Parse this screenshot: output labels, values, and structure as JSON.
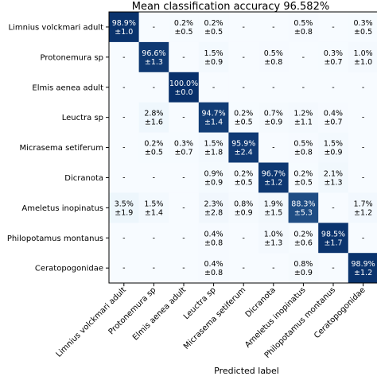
{
  "chart_data": {
    "type": "heatmap",
    "title": "Mean classification accuracy 96.582%",
    "xlabel": "Predicted label",
    "ylabel": "",
    "labels": [
      "Limnius volckmari adult",
      "Protonemura sp",
      "Elmis aenea adult",
      "Leuctra sp",
      "Micrasema setiferum",
      "Dicranota",
      "Ameletus inopinatus",
      "Philopotamus montanus",
      "Ceratopogonidae"
    ],
    "mean": [
      [
        98.9,
        null,
        0.2,
        0.2,
        null,
        null,
        0.5,
        null,
        0.3
      ],
      [
        null,
        96.6,
        null,
        1.5,
        null,
        0.5,
        null,
        0.3,
        1.0
      ],
      [
        null,
        null,
        100.0,
        null,
        null,
        null,
        null,
        null,
        null
      ],
      [
        null,
        2.8,
        null,
        94.7,
        0.2,
        0.7,
        1.2,
        0.4,
        null
      ],
      [
        null,
        0.2,
        0.3,
        1.5,
        95.9,
        null,
        0.5,
        1.5,
        null
      ],
      [
        null,
        null,
        null,
        0.9,
        0.2,
        96.7,
        0.2,
        2.1,
        null
      ],
      [
        3.5,
        1.5,
        null,
        2.3,
        0.8,
        1.9,
        88.3,
        null,
        1.7
      ],
      [
        null,
        null,
        null,
        0.4,
        null,
        1.0,
        0.2,
        98.5,
        null
      ],
      [
        null,
        null,
        null,
        0.4,
        null,
        null,
        0.8,
        null,
        98.9
      ]
    ],
    "std": [
      [
        1.0,
        null,
        0.5,
        0.5,
        null,
        null,
        0.8,
        null,
        0.5
      ],
      [
        null,
        1.3,
        null,
        0.9,
        null,
        0.8,
        null,
        0.7,
        1.0
      ],
      [
        null,
        null,
        0.0,
        null,
        null,
        null,
        null,
        null,
        null
      ],
      [
        null,
        1.6,
        null,
        1.4,
        0.5,
        0.9,
        1.1,
        0.7,
        null
      ],
      [
        null,
        0.5,
        0.7,
        1.8,
        2.4,
        null,
        0.8,
        0.9,
        null
      ],
      [
        null,
        null,
        null,
        0.9,
        0.5,
        1.2,
        0.5,
        1.3,
        null
      ],
      [
        1.9,
        1.4,
        null,
        2.8,
        0.9,
        1.5,
        5.3,
        null,
        1.2
      ],
      [
        null,
        null,
        null,
        0.8,
        null,
        1.3,
        0.6,
        1.7,
        null
      ],
      [
        null,
        null,
        null,
        0.8,
        null,
        null,
        0.9,
        null,
        1.2
      ]
    ],
    "empty_label": "-",
    "pm_symbol": "±",
    "percent_symbol": "%",
    "colormap": {
      "low": "#f7fbff",
      "mid": "#6aaed6",
      "high": "#08306b",
      "text_dark": "#000000",
      "text_light": "#ffffff"
    },
    "grid": false
  }
}
